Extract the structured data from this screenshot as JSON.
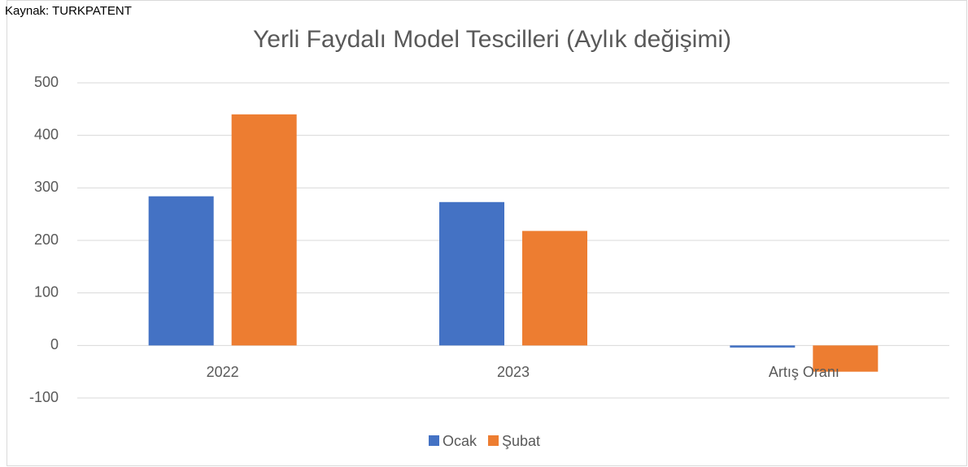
{
  "chart_data": {
    "type": "bar",
    "source": "Kaynak: TURKPATENT",
    "title": "Yerli Faydalı Model Tescilleri (Aylık değişimi)",
    "categories": [
      "2022",
      "2023",
      "Artış Oranı"
    ],
    "series": [
      {
        "name": "Ocak",
        "color": "#4472c4",
        "values": [
          284,
          273,
          -4
        ]
      },
      {
        "name": "Şubat",
        "color": "#ed7d31",
        "values": [
          440,
          218,
          -50
        ]
      }
    ],
    "ylim": [
      -100,
      500
    ],
    "yticks": [
      -100,
      0,
      100,
      200,
      300,
      400,
      500
    ],
    "grid": true,
    "legend": "bottom"
  }
}
